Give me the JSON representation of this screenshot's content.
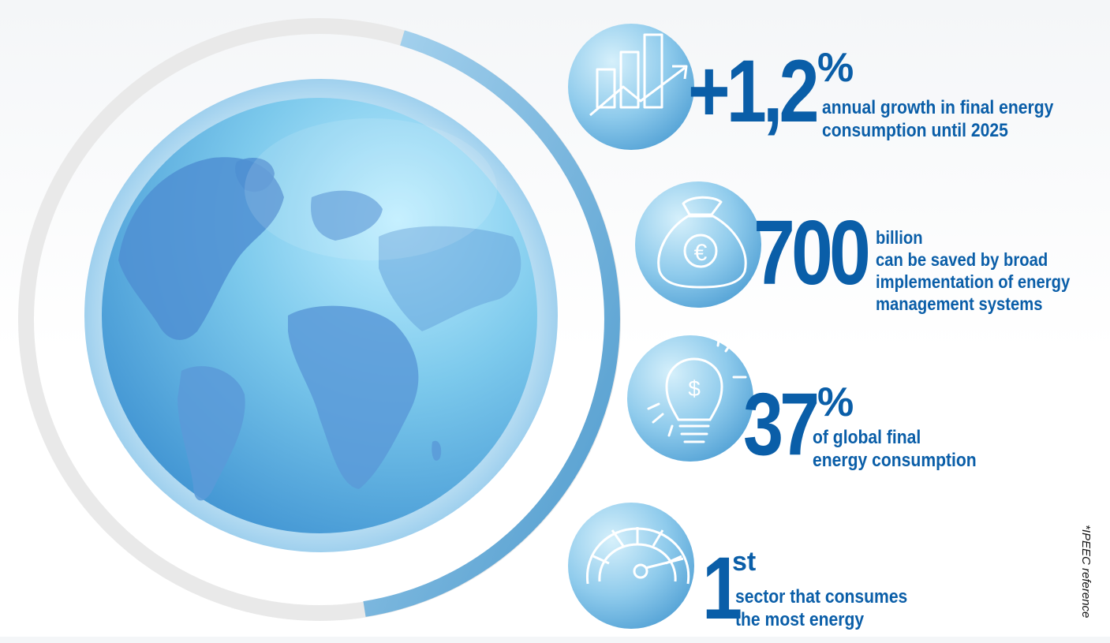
{
  "stats": [
    {
      "value": "+1,2",
      "unit": "%",
      "text": "annual growth in final energy\nconsumption until 2025",
      "icon": "growth-chart-icon"
    },
    {
      "value": "700",
      "unit": "",
      "text": "billion\ncan be saved by broad\nimplementation of energy\nmanagement systems",
      "icon": "euro-money-bag-icon"
    },
    {
      "value": "37",
      "unit": "%",
      "text": "of global final\nenergy consumption",
      "icon": "dollar-lightbulb-icon"
    },
    {
      "value": "1",
      "unit": "st",
      "text": "sector that consumes\nthe most energy",
      "icon": "gauge-icon"
    }
  ],
  "footnote": "*IPEEC reference",
  "colors": {
    "accent": "#0a5ea8",
    "ring": "#e8e8e8",
    "ring_accent": "#5aa6d6",
    "icon_bubble": "#7cc1e8"
  },
  "globe_icon": "earth-globe-icon"
}
